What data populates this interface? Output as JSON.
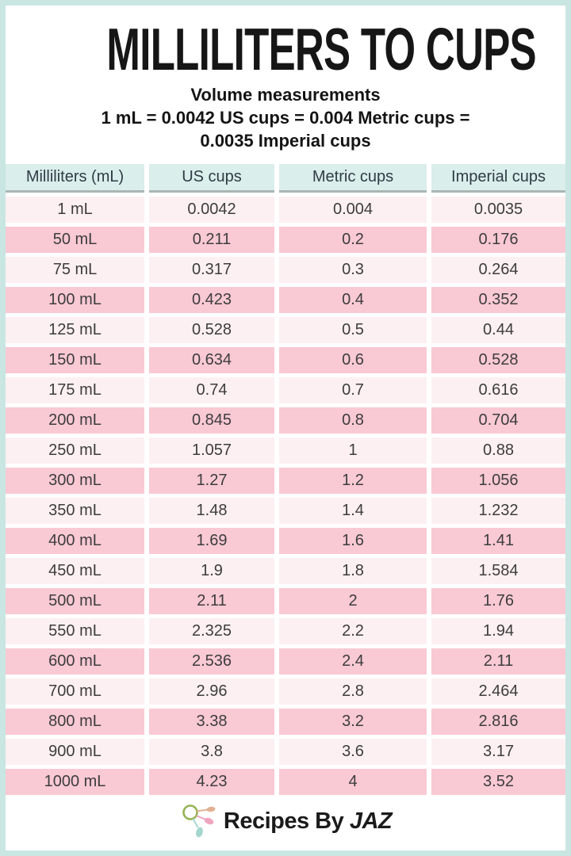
{
  "header": {
    "title": "MILLILITERS TO CUPS",
    "subtitle": "Volume measurements",
    "formula_line1": "1 mL = 0.0042 US cups = 0.004 Metric cups =",
    "formula_line2": "0.0035 Imperial cups"
  },
  "chart_data": {
    "type": "table",
    "title": "MILLILITERS TO CUPS",
    "subtitle": "Volume measurements — 1 mL = 0.0042 US cups = 0.004 Metric cups = 0.0035 Imperial cups",
    "columns": [
      "Milliliters (mL)",
      "US cups",
      "Metric cups",
      "Imperial cups"
    ],
    "rows": [
      [
        "1 mL",
        "0.0042",
        "0.004",
        "0.0035"
      ],
      [
        "50 mL",
        "0.211",
        "0.2",
        "0.176"
      ],
      [
        "75 mL",
        "0.317",
        "0.3",
        "0.264"
      ],
      [
        "100 mL",
        "0.423",
        "0.4",
        "0.352"
      ],
      [
        "125 mL",
        "0.528",
        "0.5",
        "0.44"
      ],
      [
        "150 mL",
        "0.634",
        "0.6",
        "0.528"
      ],
      [
        "175 mL",
        "0.74",
        "0.7",
        "0.616"
      ],
      [
        "200 mL",
        "0.845",
        "0.8",
        "0.704"
      ],
      [
        "250 mL",
        "1.057",
        "1",
        "0.88"
      ],
      [
        "300 mL",
        "1.27",
        "1.2",
        "1.056"
      ],
      [
        "350 mL",
        "1.48",
        "1.4",
        "1.232"
      ],
      [
        "400 mL",
        "1.69",
        "1.6",
        "1.41"
      ],
      [
        "450 mL",
        "1.9",
        "1.8",
        "1.584"
      ],
      [
        "500 mL",
        "2.11",
        "2",
        "1.76"
      ],
      [
        "550 mL",
        "2.325",
        "2.2",
        "1.94"
      ],
      [
        "600 mL",
        "2.536",
        "2.4",
        "2.11"
      ],
      [
        "700 mL",
        "2.96",
        "2.8",
        "2.464"
      ],
      [
        "800 mL",
        "3.38",
        "3.2",
        "2.816"
      ],
      [
        "900 mL",
        "3.8",
        "3.6",
        "3.17"
      ],
      [
        "1000 mL",
        "4.23",
        "4",
        "3.52"
      ]
    ]
  },
  "footer": {
    "brand_prefix": "Recipes By ",
    "brand_name": "JAZ"
  },
  "colors": {
    "mint-border": "#c9e6e2",
    "header-teal": "#daeeec",
    "header-underline": "#a9b6b4",
    "row-pink": "#f9c9d4",
    "row-light": "#fdf0f2",
    "logo-green": "#93b353",
    "logo-peach": "#e2b193",
    "logo-pink": "#f0a5bf",
    "logo-teal": "#a5d6cf"
  }
}
